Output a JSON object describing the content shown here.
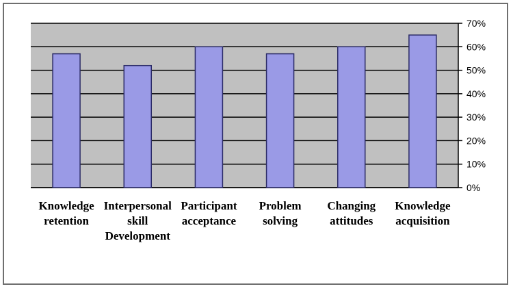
{
  "chart_data": {
    "type": "bar",
    "categories": [
      [
        "Knowledge",
        "retention"
      ],
      [
        "Interpersonal",
        "skill",
        "Development"
      ],
      [
        "Participant",
        "acceptance"
      ],
      [
        "Problem",
        "solving"
      ],
      [
        "Changing",
        "attitudes"
      ],
      [
        "Knowledge",
        "acquisition"
      ]
    ],
    "values": [
      57,
      52,
      60,
      57,
      60,
      65
    ],
    "ylim": [
      0,
      70
    ],
    "yticks": [
      "0%",
      "10%",
      "20%",
      "30%",
      "40%",
      "50%",
      "60%",
      "70%"
    ],
    "title": "",
    "xlabel": "",
    "ylabel": "",
    "grid": true,
    "y_axis_side": "right",
    "colors": {
      "bar_fill": "#9a9ae6",
      "bar_stroke": "#2b2b66",
      "plot_background": "#c0c0c0",
      "grid": "#000000"
    }
  }
}
